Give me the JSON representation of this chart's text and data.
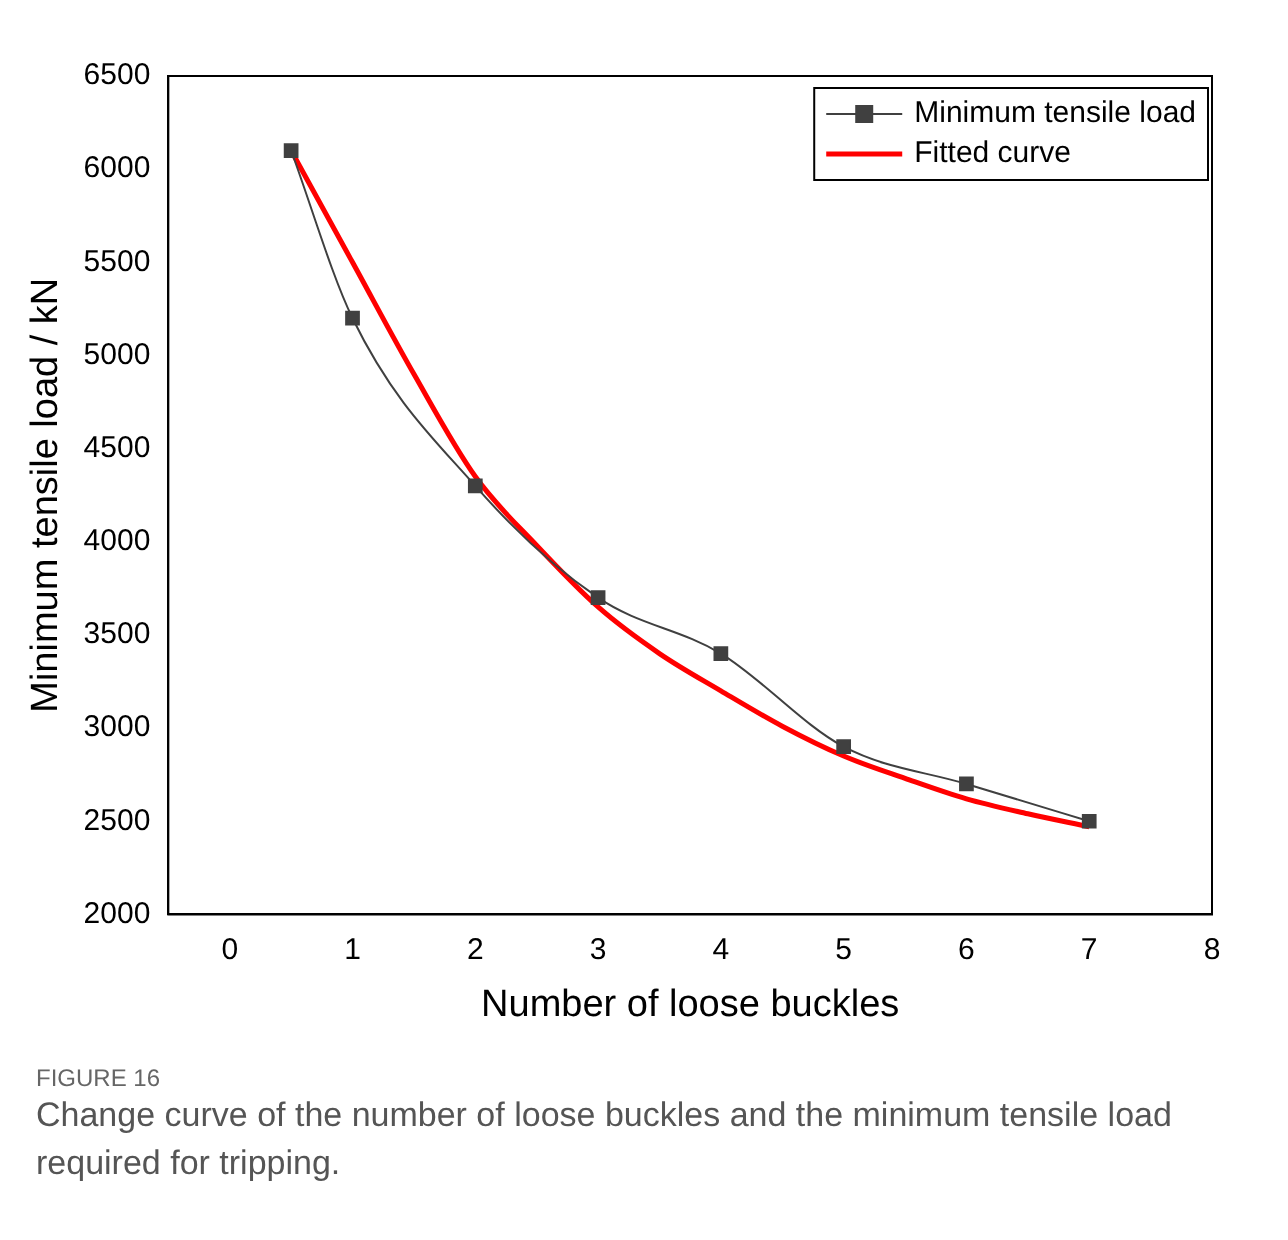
{
  "chart_data": {
    "type": "line",
    "xlabel": "Number of loose buckles",
    "ylabel": "Minimum tensile load / kN",
    "xlim": [
      -0.5,
      8
    ],
    "xticks": [
      0,
      1,
      2,
      3,
      4,
      5,
      6,
      7,
      8
    ],
    "ylim": [
      2000,
      6500
    ],
    "yticks": [
      2000,
      2500,
      3000,
      3500,
      4000,
      4500,
      5000,
      5500,
      6000,
      6500
    ],
    "grid": false,
    "legend": "top right",
    "series": [
      {
        "name": "Minimum tensile load",
        "color": "#404040",
        "marker": "square",
        "x": [
          0.5,
          1,
          2,
          3,
          4,
          5,
          6,
          7
        ],
        "values": [
          6100,
          5200,
          4300,
          3700,
          3400,
          2900,
          2700,
          2500
        ]
      },
      {
        "name": "Fitted curve",
        "color": "#ff0000",
        "marker": "none",
        "x": [
          0.5,
          1,
          1.5,
          2,
          2.5,
          3,
          3.5,
          4,
          4.5,
          5,
          5.5,
          6,
          6.5,
          7
        ],
        "values": [
          6100,
          5500,
          4900,
          4350,
          3980,
          3650,
          3400,
          3200,
          3010,
          2850,
          2730,
          2620,
          2540,
          2470
        ]
      }
    ],
    "annotations": [
      "FIGURE 16",
      "Change curve of the number of loose buckles and the minimum tensile load required for tripping."
    ]
  }
}
